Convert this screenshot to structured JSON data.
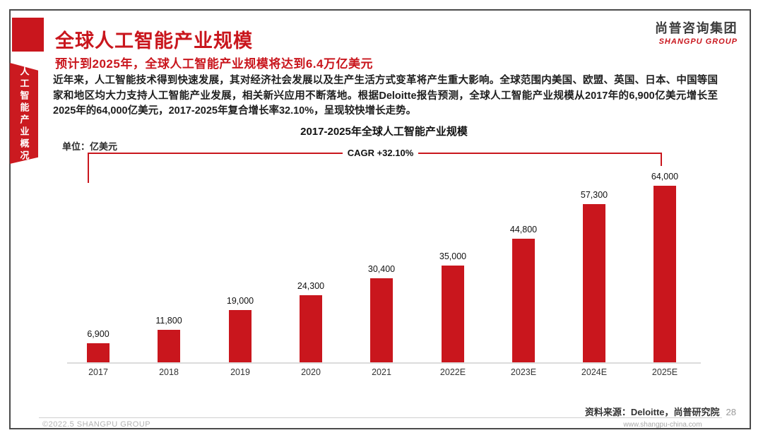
{
  "sidebar": {
    "tab_label": "人工智能产业概况"
  },
  "header": {
    "title": "全球人工智能产业规模",
    "subtitle": "预计到2025年，全球人工智能产业规模将达到6.4万亿美元",
    "body": "近年来，人工智能技术得到快速发展，其对经济社会发展以及生产生活方式变革将产生重大影响。全球范围内美国、欧盟、英国、日本、中国等国家和地区均大力支持人工智能产业发展，相关新兴应用不断落地。根据Deloitte报告预测，全球人工智能产业规模从2017年的6,900亿美元增长至2025年的64,000亿美元，2017-2025年复合增长率32.10%，呈现较快增长走势。"
  },
  "logo": {
    "cn": "尚普咨询集团",
    "en": "SHANGPU GROUP"
  },
  "chart_data": {
    "type": "bar",
    "title": "2017-2025年全球人工智能产业规模",
    "unit_label": "单位：亿美元",
    "cagr_label": "CAGR +32.10%",
    "categories": [
      "2017",
      "2018",
      "2019",
      "2020",
      "2021",
      "2022E",
      "2023E",
      "2024E",
      "2025E"
    ],
    "values": [
      6900,
      11800,
      19000,
      24300,
      30400,
      35000,
      44800,
      57300,
      64000
    ],
    "value_labels": [
      "6,900",
      "11,800",
      "19,000",
      "24,300",
      "30,400",
      "35,000",
      "44,800",
      "57,300",
      "64,000"
    ],
    "ylabel": "亿美元",
    "xlabel": "",
    "ylim": [
      0,
      64000
    ],
    "grid": false,
    "legend": false,
    "bar_color": "#c9161d"
  },
  "footer": {
    "source": "资料来源：Deloitte，尚普研究院",
    "page": "28",
    "copyright": "©2022.5  SHANGPU GROUP",
    "website": "www.shangpu-china.com"
  },
  "colors": {
    "accent_red": "#c9161d",
    "frame_gray": "#4a4a4a"
  }
}
